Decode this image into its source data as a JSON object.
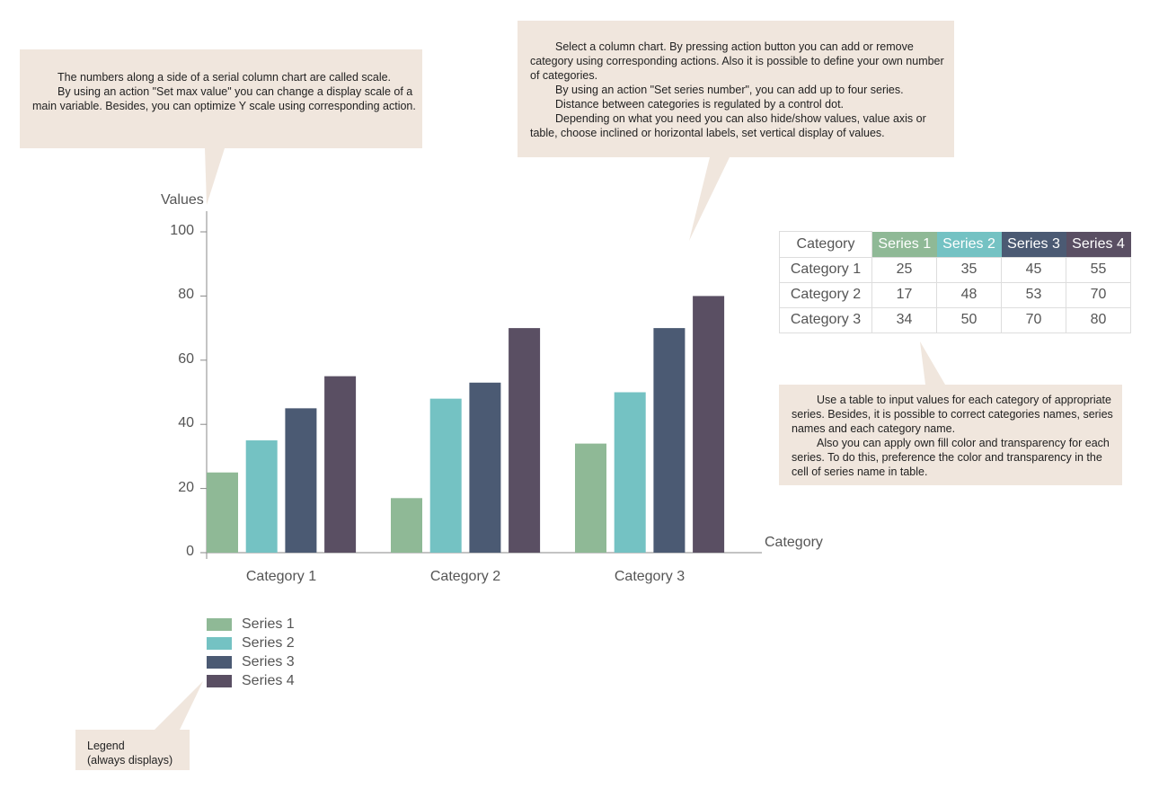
{
  "notes": {
    "scale": [
      "The numbers along a side of a serial column chart are called scale.",
      "By using an action \"Set max value\" you can change a display scale of a main variable. Besides, you can optimize Y scale using corresponding action."
    ],
    "column": [
      "Select a column chart. By pressing action button you can add or remove category using corresponding actions. Also it is possible to define your own number of categories.",
      "By using an action \"Set series number\", you can add up to four series.",
      "Distance between categories is regulated by a control dot.",
      "Depending on what you need you can also hide/show values, value axis or table, choose inclined or horizontal labels, set vertical display of values."
    ],
    "table": [
      "Use a table to input values for each category of appropriate series. Besides, it is possible to correct categories names, series names and each category name.",
      "Also you can apply own fill color and transparency for each series. To do this, preference the color and transparency in the cell of series name in table."
    ],
    "legend": [
      "Legend",
      "(always displays)"
    ]
  },
  "colors": {
    "callout": "#f0e6dd",
    "series": [
      "#8fb996",
      "#74c2c3",
      "#4b5a73",
      "#5a4f63"
    ]
  },
  "chart_data": {
    "type": "bar",
    "ylabel": "Values",
    "xlabel": "Category",
    "ylim": [
      0,
      100
    ],
    "yticks": [
      "0",
      "20",
      "40",
      "60",
      "80",
      "100"
    ],
    "categories": [
      "Category 1",
      "Category 2",
      "Category 3"
    ],
    "series": [
      {
        "name": "Series 1",
        "values": [
          25,
          17,
          34
        ]
      },
      {
        "name": "Series 2",
        "values": [
          35,
          48,
          50
        ]
      },
      {
        "name": "Series 3",
        "values": [
          45,
          53,
          70
        ]
      },
      {
        "name": "Series 4",
        "values": [
          55,
          70,
          80
        ]
      }
    ],
    "legend": "bottom-left",
    "grid": false
  },
  "table": {
    "header": "Category"
  }
}
